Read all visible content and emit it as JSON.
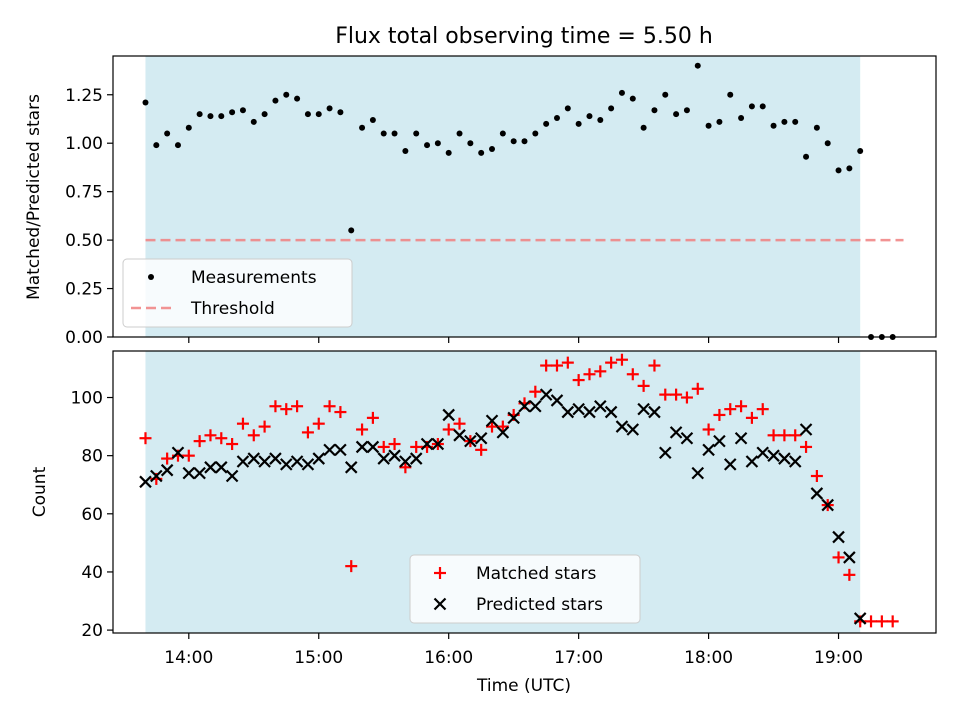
{
  "chart_data": [
    {
      "type": "scatter",
      "title": "Flux total observing time = 5.50 h",
      "xlabel": "",
      "ylabel": "Matched/Predicted stars",
      "ylim": [
        0,
        1.45
      ],
      "yticks": [
        "0.00",
        "0.25",
        "0.50",
        "0.75",
        "1.00",
        "1.25"
      ],
      "shaded_range": [
        "13:40",
        "19:10"
      ],
      "shade_color": "#add8e6",
      "legend_position": "lower-left",
      "threshold": {
        "name": "Threshold",
        "value": 0.5,
        "x_start": "13:40",
        "x_end": "19:30",
        "color": "#f08080"
      },
      "series": [
        {
          "name": "Measurements",
          "color": "#000000",
          "marker": "dot",
          "x": [
            "13:40",
            "13:45",
            "13:50",
            "13:55",
            "14:00",
            "14:05",
            "14:10",
            "14:15",
            "14:20",
            "14:25",
            "14:30",
            "14:35",
            "14:40",
            "14:45",
            "14:50",
            "14:55",
            "15:00",
            "15:05",
            "15:10",
            "15:15",
            "15:20",
            "15:25",
            "15:30",
            "15:35",
            "15:40",
            "15:45",
            "15:50",
            "15:55",
            "16:00",
            "16:05",
            "16:10",
            "16:15",
            "16:20",
            "16:25",
            "16:30",
            "16:35",
            "16:40",
            "16:45",
            "16:50",
            "16:55",
            "17:00",
            "17:05",
            "17:10",
            "17:15",
            "17:20",
            "17:25",
            "17:30",
            "17:35",
            "17:40",
            "17:45",
            "17:50",
            "17:55",
            "18:00",
            "18:05",
            "18:10",
            "18:15",
            "18:20",
            "18:25",
            "18:30",
            "18:35",
            "18:40",
            "18:45",
            "18:50",
            "18:55",
            "19:00",
            "19:05",
            "19:10",
            "19:15",
            "19:20",
            "19:25"
          ],
          "y": [
            1.21,
            0.99,
            1.05,
            0.99,
            1.08,
            1.15,
            1.14,
            1.14,
            1.16,
            1.17,
            1.11,
            1.15,
            1.22,
            1.25,
            1.23,
            1.15,
            1.15,
            1.18,
            1.16,
            0.55,
            1.08,
            1.12,
            1.05,
            1.05,
            0.96,
            1.05,
            0.99,
            1.0,
            0.95,
            1.05,
            1.0,
            0.95,
            0.97,
            1.05,
            1.01,
            1.01,
            1.05,
            1.1,
            1.13,
            1.18,
            1.1,
            1.14,
            1.12,
            1.18,
            1.26,
            1.23,
            1.08,
            1.17,
            1.25,
            1.15,
            1.17,
            1.4,
            1.09,
            1.11,
            1.25,
            1.13,
            1.19,
            1.19,
            1.09,
            1.11,
            1.11,
            0.93,
            1.08,
            1.0,
            0.86,
            0.87,
            0.96,
            0.0,
            0.0,
            0.0
          ]
        }
      ]
    },
    {
      "type": "scatter",
      "title": "",
      "xlabel": "Time (UTC)",
      "ylabel": "Count",
      "xlim": [
        "13:25",
        "19:45"
      ],
      "ylim": [
        19,
        116
      ],
      "xticks": [
        "14:00",
        "15:00",
        "16:00",
        "17:00",
        "18:00",
        "19:00"
      ],
      "yticks": [
        20,
        40,
        60,
        80,
        100
      ],
      "shaded_range": [
        "13:40",
        "19:10"
      ],
      "shade_color": "#add8e6",
      "legend_position": "lower-center",
      "series": [
        {
          "name": "Matched stars",
          "color": "#ff0000",
          "marker": "plus",
          "x": [
            "13:40",
            "13:45",
            "13:50",
            "13:55",
            "14:00",
            "14:05",
            "14:10",
            "14:15",
            "14:20",
            "14:25",
            "14:30",
            "14:35",
            "14:40",
            "14:45",
            "14:50",
            "14:55",
            "15:00",
            "15:05",
            "15:10",
            "15:15",
            "15:20",
            "15:25",
            "15:30",
            "15:35",
            "15:40",
            "15:45",
            "15:50",
            "15:55",
            "16:00",
            "16:05",
            "16:10",
            "16:15",
            "16:20",
            "16:25",
            "16:30",
            "16:35",
            "16:40",
            "16:45",
            "16:50",
            "16:55",
            "17:00",
            "17:05",
            "17:10",
            "17:15",
            "17:20",
            "17:25",
            "17:30",
            "17:35",
            "17:40",
            "17:45",
            "17:50",
            "17:55",
            "18:00",
            "18:05",
            "18:10",
            "18:15",
            "18:20",
            "18:25",
            "18:30",
            "18:35",
            "18:40",
            "18:45",
            "18:50",
            "18:55",
            "19:00",
            "19:05",
            "19:10",
            "19:15",
            "19:20",
            "19:25"
          ],
          "y": [
            86,
            72,
            79,
            80,
            80,
            85,
            87,
            86,
            84,
            91,
            87,
            90,
            97,
            96,
            97,
            88,
            91,
            97,
            95,
            42,
            89,
            93,
            83,
            84,
            76,
            83,
            83,
            84,
            89,
            91,
            85,
            82,
            90,
            90,
            94,
            98,
            102,
            111,
            111,
            112,
            106,
            108,
            109,
            112,
            113,
            108,
            104,
            111,
            101,
            101,
            100,
            103,
            89,
            94,
            96,
            97,
            93,
            96,
            87,
            87,
            87,
            83,
            73,
            63,
            45,
            39,
            23,
            23,
            23,
            23
          ]
        },
        {
          "name": "Predicted stars",
          "color": "#000000",
          "marker": "x",
          "x": [
            "13:40",
            "13:45",
            "13:50",
            "13:55",
            "14:00",
            "14:05",
            "14:10",
            "14:15",
            "14:20",
            "14:25",
            "14:30",
            "14:35",
            "14:40",
            "14:45",
            "14:50",
            "14:55",
            "15:00",
            "15:05",
            "15:10",
            "15:15",
            "15:20",
            "15:25",
            "15:30",
            "15:35",
            "15:40",
            "15:45",
            "15:50",
            "15:55",
            "16:00",
            "16:05",
            "16:10",
            "16:15",
            "16:20",
            "16:25",
            "16:30",
            "16:35",
            "16:40",
            "16:45",
            "16:50",
            "16:55",
            "17:00",
            "17:05",
            "17:10",
            "17:15",
            "17:20",
            "17:25",
            "17:30",
            "17:35",
            "17:40",
            "17:45",
            "17:50",
            "17:55",
            "18:00",
            "18:05",
            "18:10",
            "18:15",
            "18:20",
            "18:25",
            "18:30",
            "18:35",
            "18:40",
            "18:45",
            "18:50",
            "18:55",
            "19:00",
            "19:05",
            "19:10"
          ],
          "y": [
            71,
            73,
            75,
            81,
            74,
            74,
            76,
            76,
            73,
            78,
            79,
            78,
            79,
            77,
            78,
            77,
            79,
            82,
            82,
            76,
            83,
            83,
            79,
            80,
            78,
            79,
            84,
            84,
            94,
            87,
            85,
            86,
            92,
            88,
            93,
            97,
            97,
            101,
            99,
            95,
            96,
            95,
            97,
            95,
            90,
            89,
            96,
            95,
            81,
            88,
            86,
            74,
            82,
            85,
            77,
            86,
            78,
            81,
            80,
            79,
            78,
            89,
            67,
            63,
            52,
            45,
            24
          ]
        }
      ]
    }
  ]
}
